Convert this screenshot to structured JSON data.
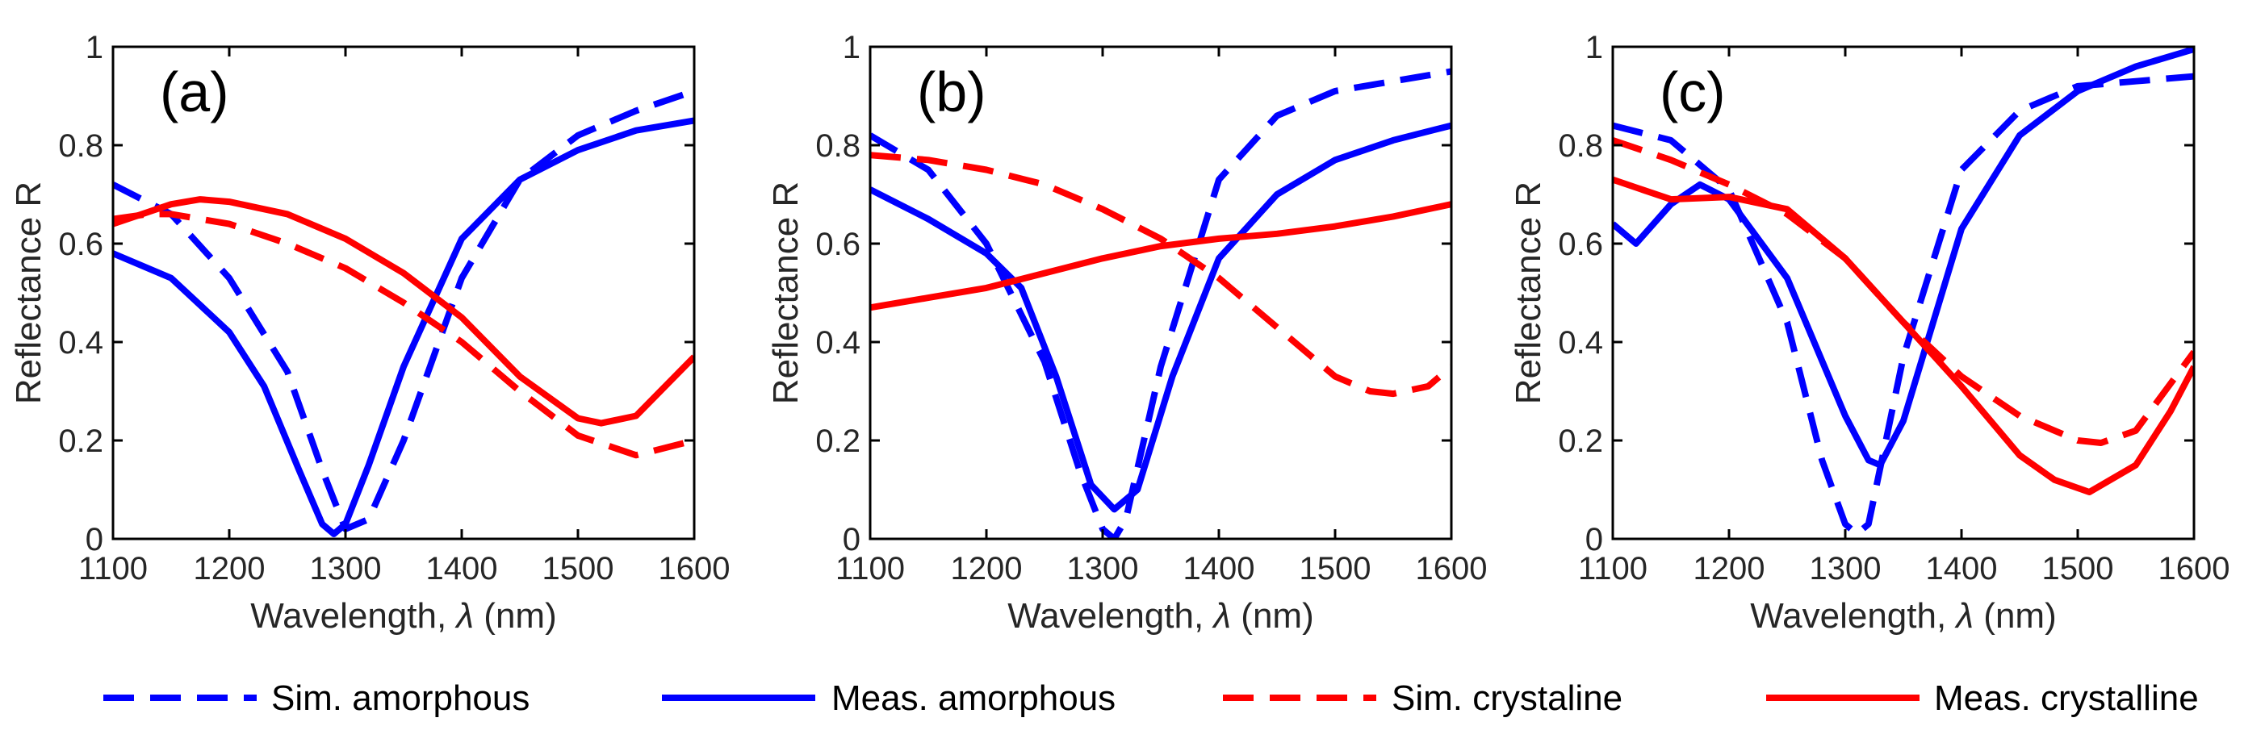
{
  "chart_data": [
    {
      "type": "line",
      "panel_label": "(a)",
      "xlabel_prefix": "Wavelength, ",
      "xlabel_symbol": "λ",
      "xlabel_suffix": " (nm)",
      "ylabel": "Reflectance R",
      "xlim": [
        1100,
        1600
      ],
      "ylim": [
        0,
        1
      ],
      "xticks": [
        "1100",
        "1200",
        "1300",
        "1400",
        "1500",
        "1600"
      ],
      "yticks": [
        "0",
        "0.2",
        "0.4",
        "0.6",
        "0.8",
        "1"
      ],
      "series": [
        {
          "name": "Sim. amorphous",
          "color": "#0000ff",
          "style": "dashed",
          "x": [
            1100,
            1150,
            1200,
            1250,
            1280,
            1300,
            1320,
            1350,
            1400,
            1450,
            1500,
            1550,
            1600
          ],
          "y": [
            0.72,
            0.66,
            0.53,
            0.34,
            0.14,
            0.02,
            0.04,
            0.2,
            0.53,
            0.73,
            0.82,
            0.87,
            0.91
          ]
        },
        {
          "name": "Meas. amorphous",
          "color": "#0000ff",
          "style": "solid",
          "x": [
            1100,
            1150,
            1200,
            1230,
            1260,
            1280,
            1290,
            1300,
            1320,
            1350,
            1400,
            1450,
            1500,
            1550,
            1600
          ],
          "y": [
            0.58,
            0.53,
            0.42,
            0.31,
            0.14,
            0.03,
            0.01,
            0.03,
            0.15,
            0.35,
            0.61,
            0.73,
            0.79,
            0.83,
            0.85
          ]
        },
        {
          "name": "Sim. crystaline",
          "color": "#ff0000",
          "style": "dashed",
          "x": [
            1100,
            1130,
            1150,
            1200,
            1250,
            1300,
            1350,
            1400,
            1450,
            1500,
            1550,
            1600
          ],
          "y": [
            0.65,
            0.66,
            0.66,
            0.64,
            0.6,
            0.55,
            0.48,
            0.4,
            0.3,
            0.21,
            0.17,
            0.2
          ]
        },
        {
          "name": "Meas. crystalline",
          "color": "#ff0000",
          "style": "solid",
          "x": [
            1100,
            1150,
            1175,
            1200,
            1250,
            1300,
            1350,
            1400,
            1450,
            1500,
            1520,
            1550,
            1600
          ],
          "y": [
            0.64,
            0.68,
            0.69,
            0.685,
            0.66,
            0.61,
            0.54,
            0.45,
            0.33,
            0.245,
            0.235,
            0.25,
            0.37
          ]
        }
      ]
    },
    {
      "type": "line",
      "panel_label": "(b)",
      "xlabel_prefix": "Wavelength, ",
      "xlabel_symbol": "λ",
      "xlabel_suffix": " (nm)",
      "ylabel": "Reflectance R",
      "xlim": [
        1100,
        1600
      ],
      "ylim": [
        0,
        1
      ],
      "xticks": [
        "1100",
        "1200",
        "1300",
        "1400",
        "1500",
        "1600"
      ],
      "yticks": [
        "0",
        "0.2",
        "0.4",
        "0.6",
        "0.8",
        "1"
      ],
      "series": [
        {
          "name": "Sim. amorphous",
          "color": "#0000ff",
          "style": "dashed",
          "x": [
            1100,
            1150,
            1200,
            1250,
            1280,
            1300,
            1310,
            1320,
            1350,
            1400,
            1450,
            1500,
            1550,
            1600
          ],
          "y": [
            0.82,
            0.75,
            0.6,
            0.36,
            0.14,
            0.02,
            0.0,
            0.04,
            0.35,
            0.73,
            0.86,
            0.91,
            0.93,
            0.95
          ]
        },
        {
          "name": "Meas. amorphous",
          "color": "#0000ff",
          "style": "solid",
          "x": [
            1100,
            1150,
            1200,
            1230,
            1260,
            1290,
            1310,
            1330,
            1360,
            1400,
            1450,
            1500,
            1550,
            1600
          ],
          "y": [
            0.71,
            0.65,
            0.58,
            0.51,
            0.33,
            0.11,
            0.06,
            0.1,
            0.33,
            0.57,
            0.7,
            0.77,
            0.81,
            0.84
          ]
        },
        {
          "name": "Sim. crystaline",
          "color": "#ff0000",
          "style": "dashed",
          "x": [
            1100,
            1150,
            1200,
            1250,
            1300,
            1350,
            1400,
            1450,
            1500,
            1530,
            1550,
            1580,
            1600
          ],
          "y": [
            0.78,
            0.77,
            0.75,
            0.72,
            0.67,
            0.61,
            0.53,
            0.43,
            0.33,
            0.3,
            0.295,
            0.31,
            0.35
          ]
        },
        {
          "name": "Meas. crystalline",
          "color": "#ff0000",
          "style": "solid",
          "x": [
            1100,
            1150,
            1200,
            1250,
            1300,
            1350,
            1400,
            1450,
            1500,
            1550,
            1600
          ],
          "y": [
            0.47,
            0.49,
            0.51,
            0.54,
            0.57,
            0.595,
            0.61,
            0.62,
            0.635,
            0.655,
            0.68
          ]
        }
      ]
    },
    {
      "type": "line",
      "panel_label": "(c)",
      "xlabel_prefix": "Wavelength, ",
      "xlabel_symbol": "λ",
      "xlabel_suffix": " (nm)",
      "ylabel": "Reflectance R",
      "xlim": [
        1100,
        1600
      ],
      "ylim": [
        0,
        1
      ],
      "xticks": [
        "1100",
        "1200",
        "1300",
        "1400",
        "1500",
        "1600"
      ],
      "yticks": [
        "0",
        "0.2",
        "0.4",
        "0.6",
        "0.8",
        "1"
      ],
      "series": [
        {
          "name": "Sim. amorphous",
          "color": "#0000ff",
          "style": "dashed",
          "x": [
            1100,
            1150,
            1200,
            1250,
            1280,
            1300,
            1310,
            1320,
            1350,
            1400,
            1450,
            1500,
            1550,
            1600
          ],
          "y": [
            0.84,
            0.81,
            0.71,
            0.44,
            0.16,
            0.03,
            0.01,
            0.03,
            0.37,
            0.75,
            0.87,
            0.92,
            0.93,
            0.94
          ]
        },
        {
          "name": "Meas. amorphous",
          "color": "#0000ff",
          "style": "solid",
          "x": [
            1100,
            1120,
            1150,
            1175,
            1200,
            1250,
            1300,
            1320,
            1330,
            1350,
            1400,
            1450,
            1500,
            1550,
            1600
          ],
          "y": [
            0.64,
            0.6,
            0.68,
            0.72,
            0.69,
            0.53,
            0.25,
            0.16,
            0.15,
            0.24,
            0.63,
            0.82,
            0.91,
            0.96,
            0.995
          ]
        },
        {
          "name": "Sim. crystaline",
          "color": "#ff0000",
          "style": "dashed",
          "x": [
            1100,
            1150,
            1200,
            1250,
            1300,
            1350,
            1400,
            1450,
            1500,
            1520,
            1550,
            1600
          ],
          "y": [
            0.81,
            0.77,
            0.72,
            0.66,
            0.57,
            0.44,
            0.33,
            0.25,
            0.2,
            0.195,
            0.22,
            0.38
          ]
        },
        {
          "name": "Meas. crystalline",
          "color": "#ff0000",
          "style": "solid",
          "x": [
            1100,
            1150,
            1200,
            1250,
            1300,
            1350,
            1400,
            1450,
            1480,
            1510,
            1550,
            1580,
            1600
          ],
          "y": [
            0.73,
            0.69,
            0.695,
            0.67,
            0.57,
            0.44,
            0.31,
            0.17,
            0.12,
            0.095,
            0.15,
            0.26,
            0.35
          ]
        }
      ]
    }
  ],
  "legend": [
    {
      "label": "Sim. amorphous",
      "color": "#0000ff",
      "style": "dashed"
    },
    {
      "label": "Meas. amorphous",
      "color": "#0000ff",
      "style": "solid"
    },
    {
      "label": "Sim. crystaline",
      "color": "#ff0000",
      "style": "dashed"
    },
    {
      "label": "Meas. crystalline",
      "color": "#ff0000",
      "style": "solid"
    }
  ]
}
